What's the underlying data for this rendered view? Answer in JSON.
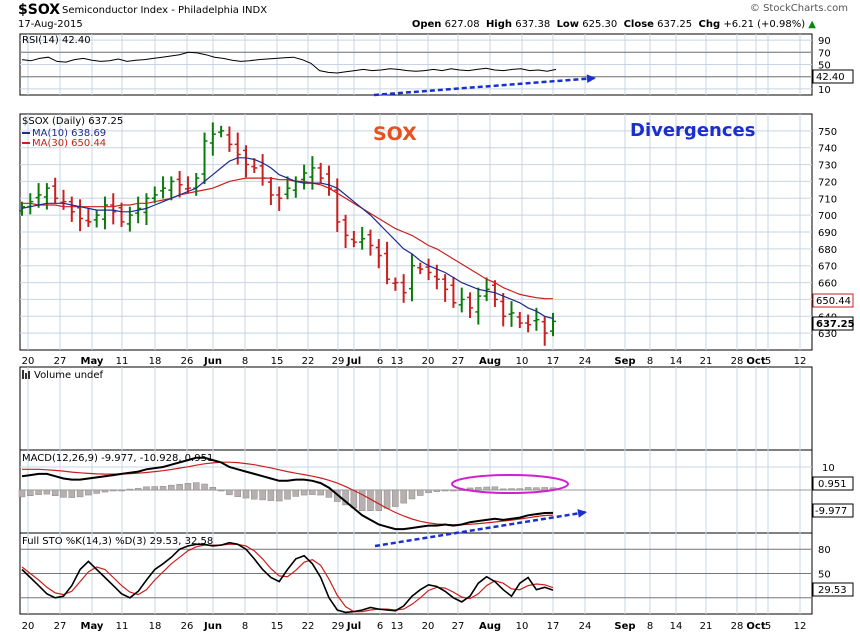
{
  "header": {
    "symbol": "$SOX",
    "description": "Semiconductor Index - Philadelphia  INDX",
    "date": "17-Aug-2015",
    "brand": "© StockCharts.com",
    "quote": {
      "open_label": "Open",
      "open": "627.08",
      "high_label": "High",
      "high": "637.38",
      "low_label": "Low",
      "low": "625.30",
      "close_label": "Close",
      "close": "637.25",
      "chg_label": "Chg",
      "chg": "+6.21 (+0.98%)",
      "arrow": "▲"
    }
  },
  "annotations": {
    "sox": "SOX",
    "divergences": "Divergences",
    "colors": {
      "sox": "#e8501e",
      "divergences": "#1a2fcf",
      "arrow": "#1a2fcf",
      "ellipse": "#d020d0"
    }
  },
  "chart_data": [
    {
      "type": "line",
      "panel": "rsi",
      "title": "RSI(14) 42.40",
      "ylim": [
        0,
        100
      ],
      "y_ticks": [
        "90",
        "70",
        "50",
        "30",
        "10"
      ],
      "value_tag": "42.40",
      "values": [
        58,
        56,
        60,
        62,
        55,
        54,
        58,
        60,
        57,
        55,
        56,
        59,
        55,
        57,
        58,
        60,
        62,
        64,
        66,
        70,
        69,
        66,
        62,
        60,
        57,
        55,
        56,
        58,
        59,
        60,
        61,
        62,
        58,
        52,
        40,
        37,
        36,
        38,
        40,
        42,
        40,
        41,
        43,
        42,
        40,
        39,
        40,
        42,
        40,
        43,
        41,
        40,
        42,
        44,
        41,
        40,
        42,
        43,
        40,
        41,
        39,
        42
      ]
    },
    {
      "type": "ohlc",
      "panel": "price",
      "title": "$SOX (Daily) 637.25",
      "ylim": [
        620,
        760
      ],
      "y_ticks": [
        "750",
        "740",
        "730",
        "720",
        "710",
        "700",
        "690",
        "680",
        "670",
        "660",
        "650",
        "640",
        "630"
      ],
      "x_tick_labels": [
        "20",
        "27",
        "May",
        "11",
        "18",
        "26",
        "Jun",
        "8",
        "15",
        "22",
        "29",
        "Jul",
        "6",
        "13",
        "20",
        "27",
        "Aug",
        "10",
        "17",
        "24",
        "Sep",
        "8",
        "14",
        "21",
        "28",
        "Oct",
        "5",
        "12"
      ],
      "ma10": {
        "name": "MA(10) 638.69",
        "color": "#1c2c8c",
        "tag": null
      },
      "ma30": {
        "name": "MA(30) 650.44",
        "color": "#c8201e",
        "tag": "650.44"
      },
      "close_tag": "637.25",
      "closes": [
        705,
        708,
        712,
        716,
        710,
        708,
        702,
        698,
        696,
        700,
        706,
        702,
        696,
        700,
        704,
        710,
        712,
        716,
        720,
        718,
        716,
        722,
        744,
        748,
        750,
        742,
        736,
        730,
        728,
        722,
        712,
        710,
        716,
        720,
        725,
        728,
        722,
        716,
        696,
        688,
        684,
        686,
        682,
        676,
        662,
        660,
        654,
        670,
        668,
        666,
        662,
        656,
        648,
        650,
        645,
        652,
        656,
        650,
        640,
        642,
        636,
        635,
        638,
        630,
        637
      ],
      "ma10_values": [
        704,
        705,
        706,
        707,
        707,
        707,
        706,
        705,
        704,
        703,
        703,
        703,
        702,
        702,
        703,
        704,
        706,
        708,
        710,
        712,
        714,
        716,
        720,
        724,
        728,
        732,
        734,
        734,
        733,
        731,
        728,
        724,
        722,
        720,
        719,
        719,
        719,
        718,
        716,
        712,
        708,
        704,
        700,
        695,
        690,
        685,
        680,
        677,
        673,
        670,
        668,
        666,
        663,
        660,
        658,
        656,
        655,
        654,
        652,
        650,
        648,
        645,
        643,
        640,
        638.69
      ],
      "ma30_values": [
        707,
        707,
        706,
        706,
        706,
        705,
        705,
        705,
        705,
        705,
        705,
        705,
        706,
        706,
        707,
        707,
        708,
        709,
        710,
        712,
        713,
        714,
        715,
        716,
        718,
        720,
        721,
        722,
        722,
        722,
        722,
        721,
        721,
        720,
        720,
        719,
        718,
        716,
        713,
        710,
        707,
        704,
        701,
        698,
        695,
        692,
        690,
        688,
        685,
        682,
        680,
        677,
        674,
        671,
        668,
        665,
        662,
        660,
        657,
        655,
        653,
        652,
        651,
        650.5,
        650.44
      ]
    },
    {
      "type": "bar",
      "panel": "volume",
      "title": "Volume undef",
      "values": []
    },
    {
      "type": "line",
      "panel": "macd",
      "title": "MACD(12,26,9) -9.977, -10.928, 0.951",
      "y_ticks": [
        "10"
      ],
      "tags": {
        "histogram": "0.951",
        "macd": "-9.977"
      },
      "series": [
        {
          "name": "MACD",
          "values": [
            6,
            6.5,
            7,
            7,
            6,
            5,
            4.5,
            4.5,
            5,
            5.5,
            6,
            6.5,
            7,
            7.5,
            8,
            9,
            9.5,
            10,
            11,
            12,
            13,
            14,
            14,
            13,
            12,
            10,
            9,
            8,
            7,
            6,
            5,
            4,
            4,
            4.5,
            4.5,
            4,
            3,
            1,
            -2,
            -5,
            -8,
            -11,
            -13,
            -15,
            -16,
            -17,
            -17,
            -16.5,
            -16,
            -15.5,
            -15.5,
            -15,
            -15.5,
            -15,
            -14,
            -13.5,
            -13,
            -12.5,
            -13,
            -12.5,
            -12,
            -11,
            -10.5,
            -10,
            -9.977
          ]
        },
        {
          "name": "Signal",
          "values": [
            9,
            9,
            9,
            8.8,
            8.5,
            8.2,
            7.8,
            7.5,
            7.2,
            7,
            6.9,
            6.9,
            7,
            7.1,
            7.3,
            7.6,
            8,
            8.4,
            8.9,
            9.5,
            10.1,
            10.8,
            11.4,
            11.8,
            12.1,
            12.1,
            11.9,
            11.5,
            11,
            10.3,
            9.6,
            8.8,
            8,
            7.3,
            6.7,
            6,
            5.2,
            4.2,
            3,
            1.5,
            -0.2,
            -2,
            -4,
            -6,
            -8,
            -9.8,
            -11.3,
            -12.6,
            -13.6,
            -14.3,
            -14.8,
            -15,
            -15.1,
            -15.1,
            -14.9,
            -14.6,
            -14.3,
            -13.9,
            -13.5,
            -13.1,
            -12.6,
            -12.1,
            -11.5,
            -11.1,
            -10.928
          ]
        }
      ]
    },
    {
      "type": "line",
      "panel": "stochastic",
      "title": "Full STO %K(14,3) %D(3) 29.53, 32.58",
      "ylim": [
        0,
        100
      ],
      "y_ticks": [
        "80",
        "50"
      ],
      "tags": {
        "k": "29.53"
      },
      "series": [
        {
          "name": "%K",
          "values": [
            55,
            45,
            35,
            25,
            20,
            22,
            35,
            55,
            65,
            55,
            45,
            35,
            25,
            20,
            28,
            42,
            55,
            62,
            70,
            80,
            84,
            86,
            86,
            84,
            85,
            88,
            86,
            80,
            68,
            55,
            45,
            40,
            55,
            68,
            72,
            62,
            45,
            20,
            5,
            2,
            3,
            5,
            8,
            6,
            5,
            4,
            10,
            22,
            30,
            36,
            34,
            28,
            20,
            15,
            22,
            38,
            46,
            40,
            30,
            22,
            38,
            45,
            30,
            33,
            29.53
          ]
        },
        {
          "name": "%D",
          "values": [
            58,
            50,
            42,
            33,
            26,
            24,
            28,
            40,
            52,
            58,
            55,
            45,
            35,
            27,
            24,
            30,
            42,
            52,
            62,
            70,
            78,
            83,
            85,
            85,
            85,
            86,
            86,
            84,
            78,
            68,
            56,
            47,
            46,
            54,
            64,
            67,
            60,
            43,
            23,
            9,
            3,
            3,
            5,
            6,
            6,
            5,
            6,
            12,
            20,
            29,
            33,
            32,
            27,
            21,
            19,
            25,
            35,
            41,
            38,
            31,
            30,
            35,
            37,
            36,
            32.58
          ]
        }
      ]
    }
  ]
}
